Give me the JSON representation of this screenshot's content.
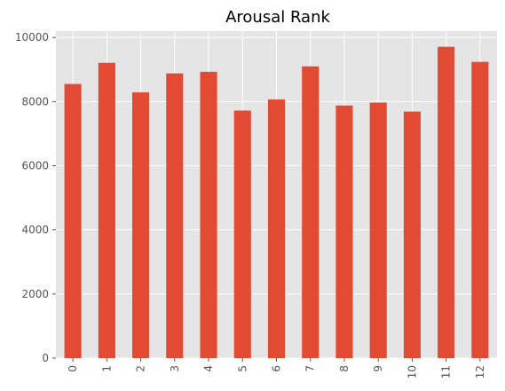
{
  "chart_data": {
    "type": "bar",
    "title": "Arousal Rank",
    "xlabel": "",
    "ylabel": "",
    "categories": [
      "0",
      "1",
      "2",
      "3",
      "4",
      "5",
      "6",
      "7",
      "8",
      "9",
      "10",
      "11",
      "12"
    ],
    "values": [
      8550,
      9210,
      8290,
      8880,
      8930,
      7720,
      8070,
      9100,
      7880,
      7970,
      7690,
      9710,
      9240
    ],
    "ylim": [
      0,
      10200
    ],
    "yticks": [
      0,
      2000,
      4000,
      6000,
      8000,
      10000
    ],
    "grid": true,
    "legend": "none",
    "colors": {
      "bar": "#E24A33",
      "plot_background": "#E5E5E5",
      "grid": "#FFFFFF",
      "tick_label": "#555555"
    }
  }
}
